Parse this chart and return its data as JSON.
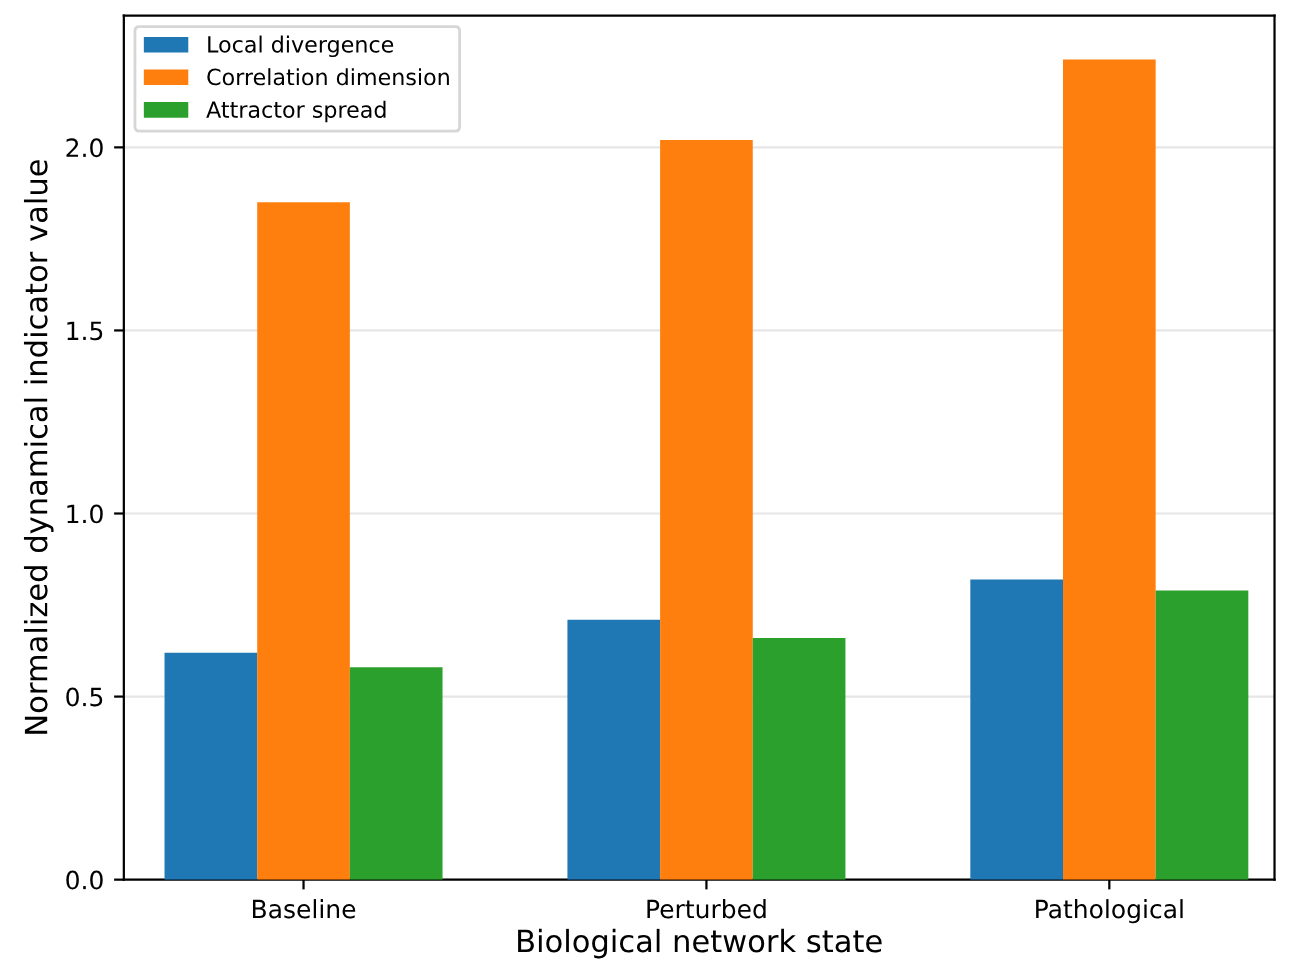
{
  "chart_data": {
    "type": "bar",
    "xlabel": "Biological network state",
    "ylabel": "Normalized dynamical indicator value",
    "categories": [
      "Baseline",
      "Perturbed",
      "Pathological"
    ],
    "series": [
      {
        "name": "Local divergence",
        "color": "#1f77b4",
        "values": [
          0.62,
          0.71,
          0.82
        ]
      },
      {
        "name": "Correlation dimension",
        "color": "#ff7f0e",
        "values": [
          1.85,
          2.02,
          2.24
        ]
      },
      {
        "name": "Attractor spread",
        "color": "#2ca02c",
        "values": [
          0.58,
          0.66,
          0.79
        ]
      }
    ],
    "ylim": [
      0,
      2.36
    ],
    "yticks": [
      {
        "value": 0,
        "label": "0.0"
      },
      {
        "value": 0.5,
        "label": "0.5"
      },
      {
        "value": 1,
        "label": "1.0"
      },
      {
        "value": 1.5,
        "label": "1.5"
      },
      {
        "value": 2,
        "label": "2.0"
      }
    ],
    "grid": "y",
    "legend": "top left"
  }
}
